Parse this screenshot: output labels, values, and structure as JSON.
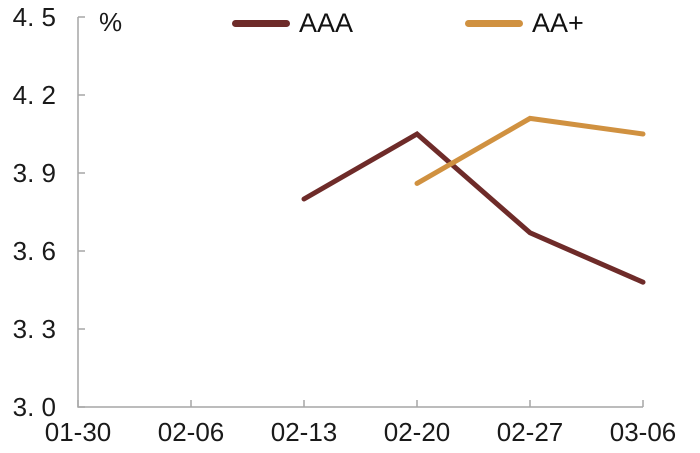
{
  "chart_data": {
    "type": "line",
    "title": "",
    "unit_label": "%",
    "categories": [
      "01-30",
      "02-06",
      "02-13",
      "02-20",
      "02-27",
      "03-06"
    ],
    "series": [
      {
        "name": "AAA",
        "color": "#6E2B29",
        "values": [
          null,
          null,
          3.8,
          4.05,
          3.67,
          3.48
        ]
      },
      {
        "name": "AA+",
        "color": "#D09140",
        "values": [
          null,
          null,
          null,
          3.86,
          4.11,
          4.05
        ]
      }
    ],
    "ylim": [
      3.0,
      4.5
    ],
    "ytick_step": 0.3,
    "ytick_labels": [
      "4. 5",
      "4. 2",
      "3. 9",
      "3. 6",
      "3. 3",
      "3. 0"
    ],
    "xlabel": "",
    "ylabel": "",
    "grid": false,
    "legend_position": "top-center",
    "line_width": 5,
    "axis_color": "#A6A6A6",
    "text_color": "#1A1A1A",
    "background_color": "#FFFFFF"
  }
}
